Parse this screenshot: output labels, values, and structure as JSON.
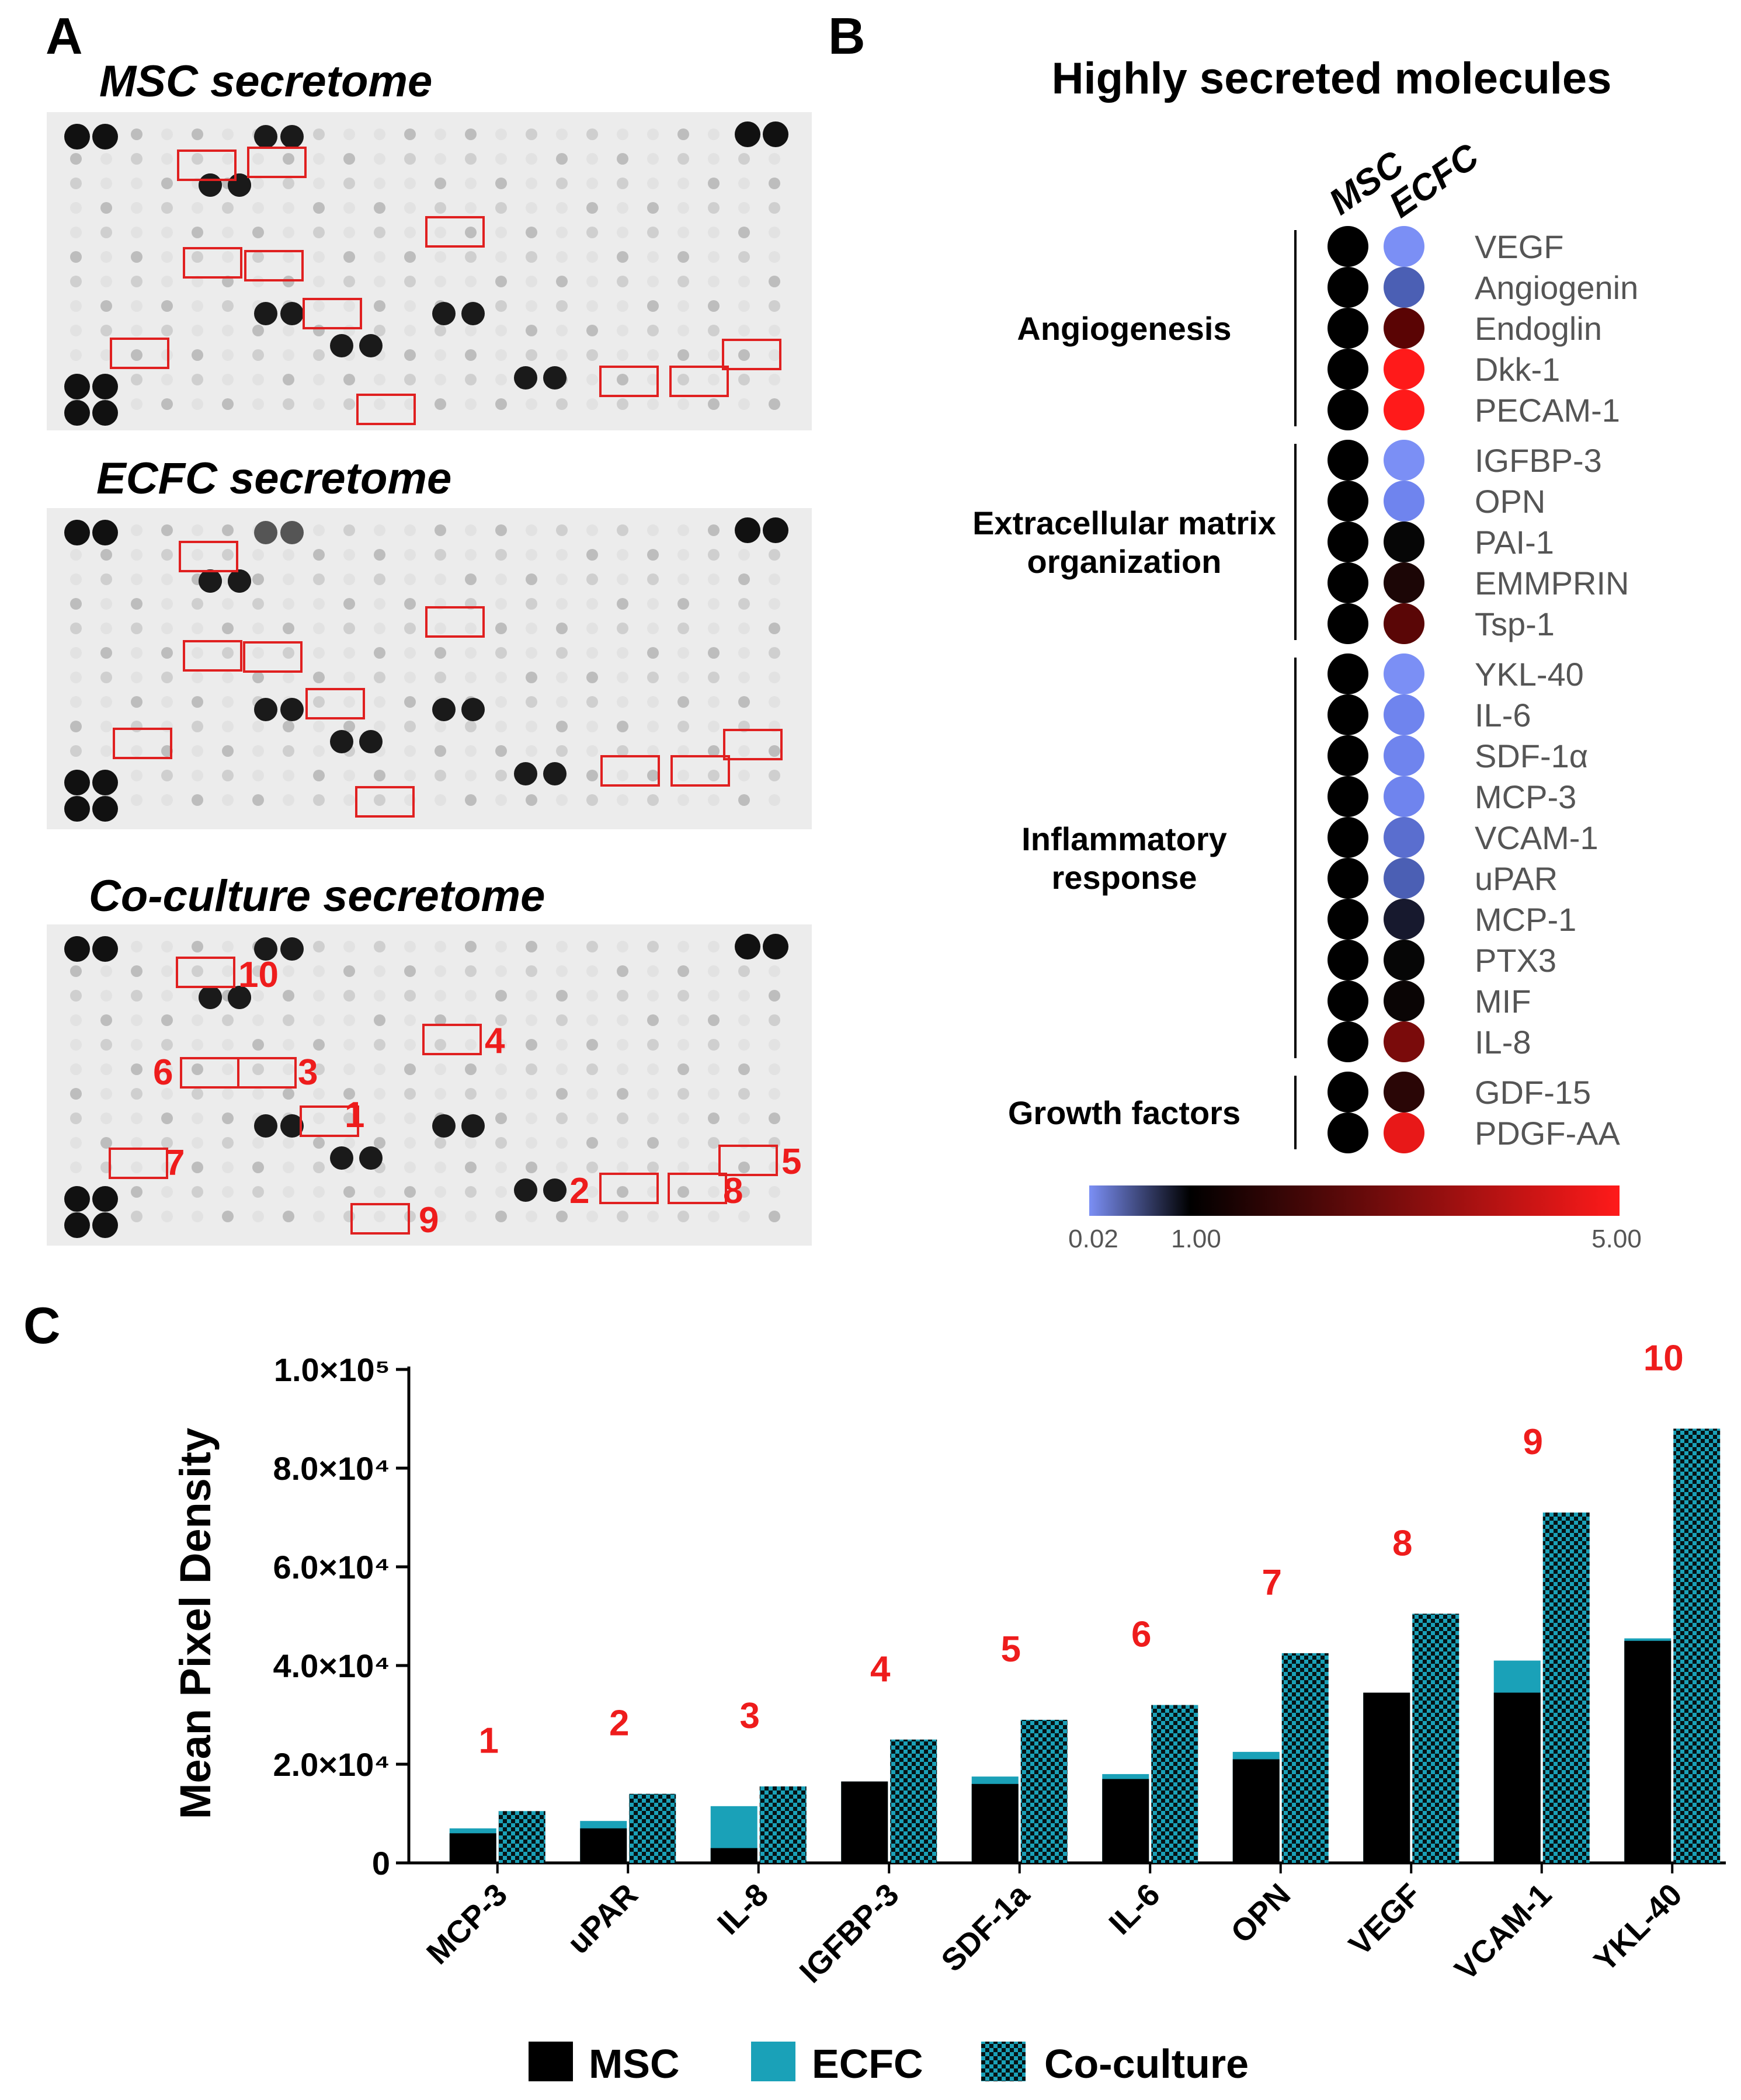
{
  "panel_labels": {
    "a": "A",
    "b": "B",
    "c": "C"
  },
  "panel_a": {
    "titles": [
      "MSC secretome",
      "ECFC secretome",
      "Co-culture secretome"
    ],
    "coculture_numbers": [
      "10",
      "4",
      "6",
      "3",
      "1",
      "7",
      "5",
      "2",
      "8",
      "9"
    ]
  },
  "panel_b": {
    "title": "Highly secreted molecules",
    "columns": [
      "MSC",
      "ECFC"
    ],
    "categories": [
      {
        "name_lines": [
          "Angiogenesis"
        ],
        "molecules": [
          "VEGF",
          "Angiogenin",
          "Endoglin",
          "Dkk-1",
          "PECAM-1"
        ]
      },
      {
        "name_lines": [
          "Extracellular matrix",
          "organization"
        ],
        "molecules": [
          "IGFBP-3",
          "OPN",
          "PAI-1",
          "EMMPRIN",
          "Tsp-1"
        ]
      },
      {
        "name_lines": [
          "Inflammatory",
          "response"
        ],
        "molecules": [
          "YKL-40",
          "IL-6",
          "SDF-1α",
          "MCP-3",
          "VCAM-1",
          "uPAR",
          "MCP-1",
          "PTX3",
          "MIF",
          "IL-8"
        ]
      },
      {
        "name_lines": [
          "Growth factors"
        ],
        "molecules": [
          "GDF-15",
          "PDGF-AA"
        ]
      }
    ],
    "msc_color": "#000000",
    "ecfc_colors": [
      "#7b8ff5",
      "#4b5fb4",
      "#5a0404",
      "#ff1a1a",
      "#ff1a1a",
      "#7b8ff5",
      "#6f84ee",
      "#060606",
      "#1c0606",
      "#5a0606",
      "#7b8ff5",
      "#6f84ee",
      "#6f84ee",
      "#6f84ee",
      "#5a6ecf",
      "#4b5fb4",
      "#17192e",
      "#060606",
      "#0a0505",
      "#7a0b0b",
      "#2a0606",
      "#e81818"
    ],
    "colorbar": {
      "labels": [
        "0.02",
        "1.00",
        "5.00"
      ],
      "colors": [
        "#7b8ff5",
        "#000000",
        "#ff1a1a"
      ]
    }
  },
  "chart_data": {
    "type": "bar",
    "ylabel": "Mean Pixel Density",
    "ylim": [
      0,
      100000
    ],
    "yticks": [
      {
        "value": 0,
        "label": "0"
      },
      {
        "value": 20000,
        "label": "2.0×10⁴"
      },
      {
        "value": 40000,
        "label": "4.0×10⁴"
      },
      {
        "value": 60000,
        "label": "6.0×10⁴"
      },
      {
        "value": 80000,
        "label": "8.0×10⁴"
      },
      {
        "value": 100000,
        "label": "1.0×10⁵"
      }
    ],
    "categories": [
      "MCP-3",
      "uPAR",
      "IL-8",
      "IGFBP-3",
      "SDF-1a",
      "IL-6",
      "OPN",
      "VEGF",
      "VCAM-1",
      "YKL-40"
    ],
    "rank_labels": [
      "1",
      "2",
      "3",
      "4",
      "5",
      "6",
      "7",
      "8",
      "9",
      "10"
    ],
    "series": [
      {
        "name": "MSC",
        "color": "#000000",
        "values": [
          6000,
          7000,
          3000,
          16500,
          16000,
          17000,
          21000,
          34500,
          34500,
          45000
        ]
      },
      {
        "name": "ECFC",
        "color": "#1aa1b8",
        "values": [
          7000,
          8500,
          11500,
          16500,
          17500,
          18000,
          22500,
          34500,
          41000,
          45500
        ]
      },
      {
        "name": "Co-culture",
        "color": "#1aa1b8",
        "pattern": "checkered",
        "values": [
          10500,
          14000,
          15500,
          25000,
          29000,
          32000,
          42500,
          50500,
          71000,
          88000
        ]
      }
    ],
    "legend": [
      "MSC",
      "ECFC",
      "Co-culture"
    ]
  }
}
